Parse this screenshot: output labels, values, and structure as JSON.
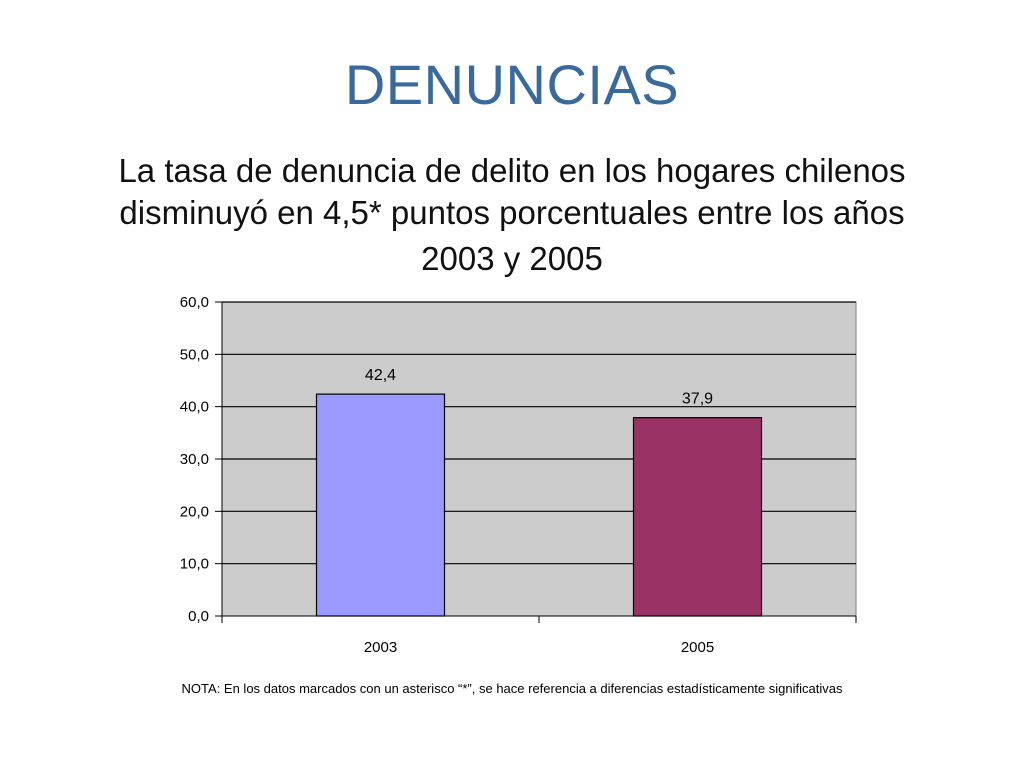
{
  "slide": {
    "title": "DENUNCIAS",
    "subtitle_line1": "La tasa de denuncia de delito en los hogares chilenos",
    "subtitle_line2": "disminuyó en 4,5* puntos porcentuales entre los años",
    "subtitle_line3": "2003 y 2005",
    "note": "NOTA:  En los datos marcados con un asterisco “*”, se hace referencia a diferencias estadísticamente significativas"
  },
  "colors": {
    "title": "#3a6a9c",
    "plot_background": "#cccccc",
    "bar_2003": "#9999ff",
    "bar_2005": "#993366"
  },
  "chart_data": {
    "type": "bar",
    "title": "",
    "xlabel": "",
    "ylabel": "",
    "categories": [
      "2003",
      "2005"
    ],
    "values": [
      42.4,
      37.9
    ],
    "value_labels": [
      "42,4",
      "37,9"
    ],
    "ylim": [
      0,
      60
    ],
    "yticks": [
      0,
      10,
      20,
      30,
      40,
      50,
      60
    ],
    "ytick_labels": [
      "0,0",
      "10,0",
      "20,0",
      "30,0",
      "40,0",
      "50,0",
      "60,0"
    ],
    "grid": true,
    "legend": "none"
  }
}
